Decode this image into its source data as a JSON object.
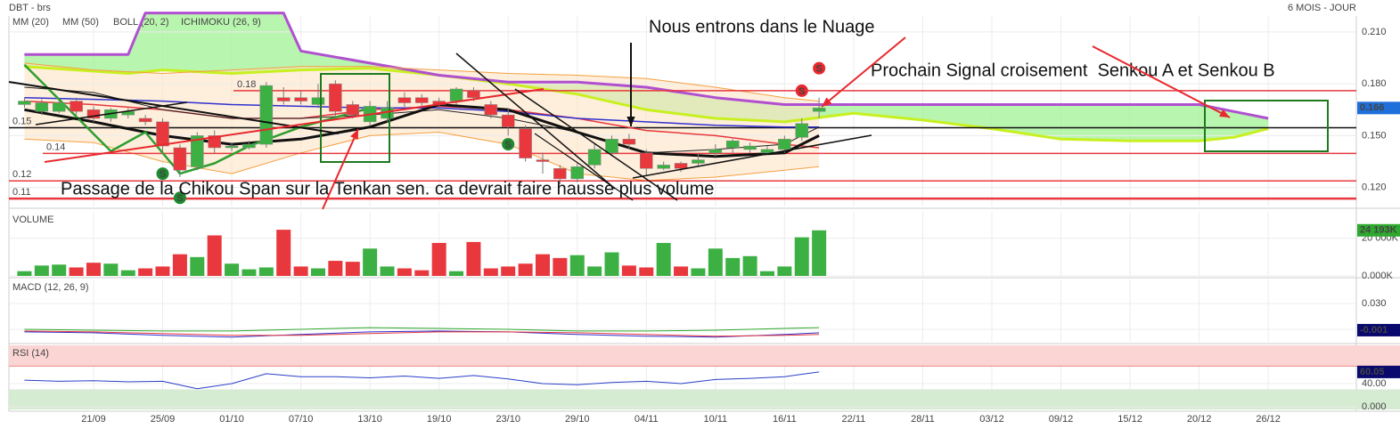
{
  "header": {
    "symbol": "DBT - brs",
    "period": "6 MOIS - JOUR"
  },
  "chart_data": [
    {
      "type": "candlestick",
      "legend": [
        {
          "label": "MM (20)",
          "color": "#e8383d"
        },
        {
          "label": "MM (50)",
          "color": "#3030d0"
        },
        {
          "label": "BOLL (20, 2)",
          "color": "#f5a040"
        },
        {
          "label": "ICHIMOKU (26, 9)",
          "color": "#333333"
        }
      ],
      "xlim": [
        -0.9,
        77.1
      ],
      "ylim": [
        0.109,
        0.2285
      ],
      "yticks": [
        {
          "value": 0.21,
          "label": "0.210"
        },
        {
          "value": 0.18,
          "label": "0.180"
        },
        {
          "value": 0.15,
          "label": "0.150"
        },
        {
          "value": 0.12,
          "label": "0.120"
        }
      ],
      "grid": true,
      "up_color": "#3cb043",
      "down_color": "#e8383d",
      "open": [
        0.168,
        0.164,
        0.164,
        0.17,
        0.165,
        0.16,
        0.162,
        0.16,
        0.158,
        0.143,
        0.132,
        0.15,
        0.143,
        0.143,
        0.145,
        0.172,
        0.172,
        0.168,
        0.18,
        0.168,
        0.158,
        0.16,
        0.172,
        0.172,
        0.17,
        0.17,
        0.176,
        0.168,
        0.162,
        0.154,
        0.136,
        0.131,
        0.125,
        0.133,
        0.14,
        0.148,
        0.14,
        0.131,
        0.134,
        0.134,
        0.14,
        0.143,
        0.142,
        0.14,
        0.142,
        0.149,
        0.164
      ],
      "high": [
        0.172,
        0.171,
        0.17,
        0.172,
        0.167,
        0.166,
        0.166,
        0.162,
        0.16,
        0.145,
        0.152,
        0.153,
        0.146,
        0.147,
        0.181,
        0.178,
        0.176,
        0.18,
        0.182,
        0.17,
        0.17,
        0.17,
        0.175,
        0.174,
        0.172,
        0.178,
        0.178,
        0.17,
        0.166,
        0.156,
        0.14,
        0.133,
        0.134,
        0.145,
        0.15,
        0.151,
        0.142,
        0.135,
        0.135,
        0.14,
        0.145,
        0.148,
        0.146,
        0.144,
        0.15,
        0.16,
        0.172
      ],
      "low": [
        0.166,
        0.162,
        0.163,
        0.162,
        0.158,
        0.158,
        0.16,
        0.156,
        0.14,
        0.126,
        0.13,
        0.14,
        0.141,
        0.142,
        0.143,
        0.168,
        0.168,
        0.166,
        0.16,
        0.16,
        0.156,
        0.158,
        0.166,
        0.167,
        0.166,
        0.168,
        0.17,
        0.16,
        0.15,
        0.135,
        0.128,
        0.122,
        0.123,
        0.131,
        0.138,
        0.142,
        0.127,
        0.13,
        0.129,
        0.132,
        0.138,
        0.14,
        0.14,
        0.139,
        0.14,
        0.147,
        0.16
      ],
      "close": [
        0.17,
        0.169,
        0.169,
        0.164,
        0.16,
        0.165,
        0.164,
        0.158,
        0.144,
        0.13,
        0.15,
        0.143,
        0.144,
        0.145,
        0.179,
        0.17,
        0.17,
        0.172,
        0.164,
        0.162,
        0.167,
        0.166,
        0.169,
        0.169,
        0.168,
        0.177,
        0.172,
        0.162,
        0.155,
        0.137,
        0.135,
        0.125,
        0.132,
        0.142,
        0.148,
        0.145,
        0.131,
        0.133,
        0.131,
        0.136,
        0.142,
        0.147,
        0.144,
        0.142,
        0.148,
        0.157,
        0.166
      ],
      "bollinger": {
        "color": "#f5a040",
        "fill": "#fde3c4",
        "x": [
          0,
          4,
          8,
          12,
          16,
          20,
          24,
          28,
          32,
          36,
          40,
          44,
          46
        ],
        "upper": [
          0.192,
          0.188,
          0.186,
          0.188,
          0.19,
          0.19,
          0.188,
          0.186,
          0.185,
          0.183,
          0.178,
          0.172,
          0.17
        ],
        "lower": [
          0.148,
          0.146,
          0.135,
          0.128,
          0.14,
          0.15,
          0.152,
          0.145,
          0.128,
          0.124,
          0.126,
          0.13,
          0.132
        ]
      },
      "cloud": {
        "fill": "#a6f29a",
        "senkou_a": {
          "color": "#c8f020",
          "x": [
            0,
            6,
            8,
            12,
            16,
            20,
            24,
            28,
            32,
            36,
            40,
            44,
            48,
            52,
            56,
            60,
            64,
            68,
            70,
            72
          ],
          "values": [
            0.19,
            0.186,
            0.188,
            0.186,
            0.188,
            0.189,
            0.185,
            0.18,
            0.174,
            0.165,
            0.16,
            0.158,
            0.163,
            0.159,
            0.154,
            0.148,
            0.147,
            0.147,
            0.149,
            0.154
          ]
        },
        "senkou_b": {
          "color": "#b050d0",
          "x": [
            0,
            6,
            7,
            15,
            16,
            20,
            24,
            28,
            32,
            36,
            40,
            44,
            48,
            56,
            64,
            68,
            72
          ],
          "values": [
            0.197,
            0.197,
            0.221,
            0.221,
            0.199,
            0.192,
            0.185,
            0.181,
            0.181,
            0.178,
            0.172,
            0.168,
            0.168,
            0.168,
            0.168,
            0.168,
            0.16
          ]
        }
      },
      "lines": [
        {
          "color": "#e8383d",
          "width": 1.5,
          "x": [
            0,
            4,
            8,
            12,
            16,
            20,
            24,
            28,
            32,
            36,
            40,
            44,
            46
          ],
          "values": [
            0.17,
            0.168,
            0.165,
            0.16,
            0.16,
            0.165,
            0.167,
            0.165,
            0.16,
            0.153,
            0.15,
            0.145,
            0.143
          ]
        },
        {
          "color": "#3030d0",
          "width": 1.5,
          "x": [
            0,
            4,
            8,
            12,
            16,
            20,
            24,
            28,
            32,
            36,
            40,
            44,
            46
          ],
          "values": [
            0.172,
            0.171,
            0.17,
            0.168,
            0.167,
            0.166,
            0.166,
            0.164,
            0.16,
            0.158,
            0.156,
            0.155,
            0.155
          ]
        },
        {
          "color": "#222222",
          "width": 1,
          "x": [
            0,
            4,
            8,
            12,
            16,
            20,
            24,
            28,
            32,
            36,
            40,
            44,
            46
          ],
          "values": [
            0.178,
            0.175,
            0.165,
            0.16,
            0.16,
            0.162,
            0.165,
            0.16,
            0.152,
            0.14,
            0.142,
            0.145,
            0.155
          ]
        },
        {
          "color": "#111111",
          "width": 3,
          "x": [
            0,
            4,
            8,
            12,
            16,
            20,
            24,
            28,
            32,
            36,
            40,
            44,
            46
          ],
          "values": [
            0.165,
            0.158,
            0.15,
            0.145,
            0.148,
            0.155,
            0.168,
            0.165,
            0.152,
            0.14,
            0.138,
            0.14,
            0.15
          ]
        },
        {
          "color": "#2e9e2e",
          "width": 2.5,
          "x": [
            0,
            5,
            7,
            9,
            11,
            13,
            16,
            20
          ],
          "values": [
            0.191,
            0.141,
            0.152,
            0.128,
            0.134,
            0.144,
            0.155,
            0.166
          ]
        }
      ],
      "levels": [
        {
          "value": 0.176,
          "label": "0.18",
          "color": "#e8383d"
        },
        {
          "value": 0.1546,
          "label": "0.15",
          "color": "#111111"
        },
        {
          "value": 0.1397,
          "label": "0.14",
          "color": "#e8383d"
        },
        {
          "value": 0.1238,
          "label": "0.12",
          "color": "#e8383d"
        },
        {
          "value": 0.1136,
          "label": "0.11",
          "color": "#e8383d"
        }
      ],
      "signals": [
        {
          "x": 8,
          "value": 0.128,
          "label": "S",
          "color": "#1e8a2e"
        },
        {
          "x": 9,
          "value": 0.114,
          "label": "S",
          "color": "#1e8a2e"
        },
        {
          "x": 28,
          "value": 0.145,
          "label": "S",
          "color": "#1e8a2e"
        },
        {
          "x": 45,
          "value": 0.176,
          "label": "S",
          "color": "#e8282d"
        },
        {
          "x": 46,
          "value": 0.189,
          "label": "S",
          "color": "#e8282d"
        }
      ],
      "last_value": 0.166,
      "last_value_color": "#1e6fd9",
      "annotations": [
        "Nous entrons dans le Nuage",
        "Prochain Signal croisement  Senkou A et Senkou B",
        "Passage de la Chikou Span sur la Tenkan sen. ca devrait faire hausse plus volume"
      ]
    },
    {
      "type": "bar",
      "title": "VOLUME",
      "ylim": [
        0,
        34000
      ],
      "yticks": [
        {
          "value": 20000,
          "label": "20 000K"
        },
        {
          "value": 0,
          "label": "0.000K"
        }
      ],
      "values": [
        2500,
        5500,
        6000,
        4500,
        7000,
        6500,
        3000,
        4000,
        5000,
        11500,
        10000,
        21500,
        6500,
        3500,
        4500,
        24500,
        5000,
        4000,
        8000,
        7500,
        14500,
        5000,
        4000,
        3000,
        17500,
        2500,
        18000,
        4000,
        5000,
        6500,
        11500,
        9500,
        11000,
        5000,
        12500,
        5500,
        4500,
        17500,
        5000,
        4000,
        14500,
        9500,
        10500,
        2500,
        5000,
        20500,
        24193
      ],
      "value_labels": [
        null,
        null,
        null,
        null,
        null,
        null,
        null,
        null,
        null,
        null,
        null,
        null,
        null,
        null,
        null,
        null,
        null,
        null,
        null,
        null,
        null,
        null,
        null,
        null,
        null,
        null,
        null,
        null,
        null,
        null,
        null,
        null,
        null,
        null,
        null,
        null,
        null,
        null,
        null,
        null,
        null,
        null,
        null,
        null,
        null,
        null,
        "24 193K"
      ],
      "label_color": "#2ea82e"
    },
    {
      "type": "line",
      "title": "MACD (12, 26, 9)",
      "ylim": [
        -0.0145,
        0.058
      ],
      "yticks": [
        {
          "value": 0.03,
          "label": "0.030"
        },
        {
          "value": 0,
          "label": "0.000"
        }
      ],
      "x": [
        0,
        4,
        8,
        12,
        16,
        20,
        24,
        28,
        32,
        36,
        40,
        44,
        46
      ],
      "series": [
        {
          "color": "#3030d0",
          "values": [
            -0.003,
            -0.004,
            -0.007,
            -0.009,
            -0.006,
            -0.003,
            -0.002,
            -0.003,
            -0.006,
            -0.008,
            -0.009,
            -0.006,
            -0.004
          ]
        },
        {
          "color": "#e8383d",
          "values": [
            -0.002,
            -0.003,
            -0.005,
            -0.007,
            -0.007,
            -0.005,
            -0.003,
            -0.003,
            -0.004,
            -0.006,
            -0.008,
            -0.007,
            -0.006
          ]
        },
        {
          "color": "#2ea82e",
          "values": [
            0.0,
            -0.001,
            -0.002,
            -0.002,
            0.0,
            0.002,
            0.001,
            0.0,
            -0.002,
            -0.002,
            -0.001,
            0.001,
            0.002
          ]
        }
      ],
      "last_value": -0.001,
      "last_value_color": "#0a0a6e"
    },
    {
      "type": "line",
      "title": "RSI (14)",
      "ylim": [
        -4.6,
        106
      ],
      "yticks": [
        {
          "value": 40,
          "label": "40.00"
        },
        {
          "value": 0,
          "label": "0.000"
        }
      ],
      "xticks": [
        {
          "value": 4,
          "label": "21/09"
        },
        {
          "value": 8,
          "label": "25/09"
        },
        {
          "value": 12,
          "label": "01/10"
        },
        {
          "value": 16,
          "label": "07/10"
        },
        {
          "value": 20,
          "label": "13/10"
        },
        {
          "value": 24,
          "label": "19/10"
        },
        {
          "value": 28,
          "label": "23/10"
        },
        {
          "value": 32,
          "label": "29/10"
        },
        {
          "value": 36,
          "label": "04/11"
        },
        {
          "value": 40,
          "label": "10/11"
        },
        {
          "value": 44,
          "label": "16/11"
        },
        {
          "value": 48,
          "label": "22/11"
        },
        {
          "value": 52,
          "label": "28/11"
        },
        {
          "value": 56,
          "label": "03/12"
        },
        {
          "value": 60,
          "label": "09/12"
        },
        {
          "value": 64,
          "label": "15/12"
        },
        {
          "value": 68,
          "label": "20/12"
        },
        {
          "value": 72,
          "label": "26/12"
        }
      ],
      "overbought": 70,
      "oversold": 30,
      "overbought_fill": "#fbd4d4",
      "oversold_fill": "#d6ecd2",
      "x": [
        0,
        2,
        4,
        6,
        8,
        10,
        12,
        14,
        16,
        18,
        20,
        22,
        24,
        26,
        28,
        30,
        32,
        34,
        36,
        38,
        40,
        42,
        44,
        46
      ],
      "series": [
        {
          "color": "#2a3fc8",
          "values": [
            46,
            44,
            45,
            43,
            44,
            31,
            40,
            57,
            52,
            52,
            50,
            53,
            49,
            54,
            48,
            40,
            38,
            42,
            44,
            40,
            47,
            49,
            52,
            60.05
          ]
        }
      ],
      "last_value_color": "#0a0a6e"
    }
  ]
}
